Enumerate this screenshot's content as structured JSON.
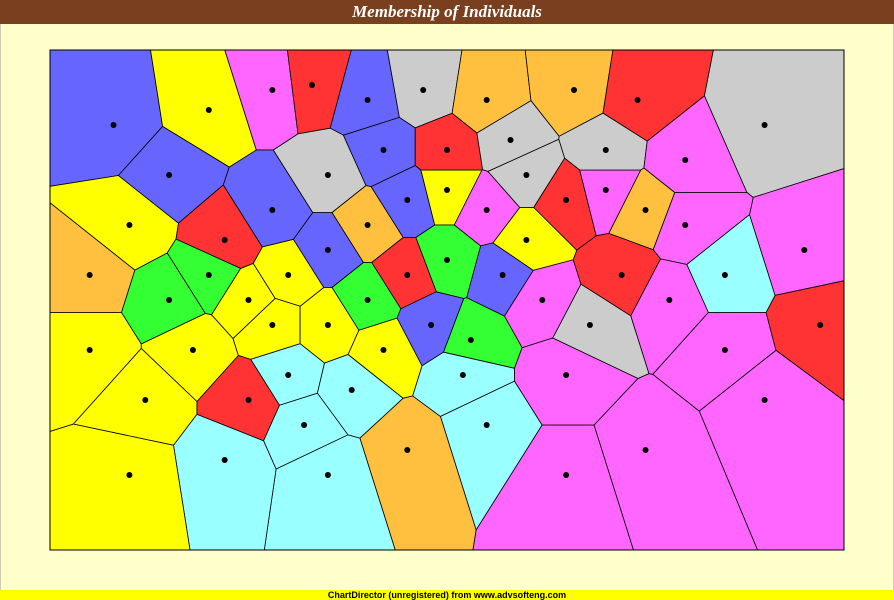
{
  "chart_data": {
    "type": "voronoi",
    "title": "Membership of Individuals",
    "footer": "ChartDirector (unregistered) from www.advsofteng.com",
    "xlim": [
      0,
      100
    ],
    "ylim": [
      0,
      100
    ],
    "x": [
      8,
      20,
      28,
      33,
      40,
      47,
      55,
      66,
      74,
      90,
      95,
      97,
      90,
      75,
      65,
      55,
      45,
      35,
      22,
      10,
      5,
      5,
      10,
      15,
      20,
      25,
      30,
      28,
      35,
      40,
      45,
      50,
      55,
      60,
      65,
      70,
      75,
      80,
      85,
      78,
      72,
      68,
      62,
      57,
      50,
      45,
      40,
      35,
      30,
      38,
      42,
      48,
      53,
      25,
      32,
      18,
      15,
      22,
      28,
      35,
      42,
      50,
      58,
      70,
      80,
      60,
      52,
      85,
      65,
      12
    ],
    "y": [
      85,
      88,
      92,
      93,
      90,
      92,
      90,
      92,
      90,
      85,
      60,
      45,
      30,
      20,
      15,
      25,
      20,
      15,
      18,
      15,
      40,
      55,
      65,
      75,
      55,
      50,
      55,
      45,
      60,
      65,
      70,
      72,
      68,
      75,
      70,
      72,
      68,
      65,
      55,
      50,
      55,
      45,
      50,
      55,
      58,
      55,
      50,
      45,
      35,
      32,
      40,
      45,
      42,
      30,
      25,
      40,
      50,
      62,
      68,
      75,
      80,
      80,
      82,
      80,
      78,
      62,
      35,
      40,
      35,
      30
    ],
    "colors": [
      "#6666ff",
      "#ffff00",
      "#ff66ff",
      "#ff3333",
      "#6666ff",
      "#cccccc",
      "#ffc040",
      "#ffc040",
      "#ff3333",
      "#cccccc",
      "#ff66ff",
      "#ff3333",
      "#ff66ff",
      "#ff66ff",
      "#ff66ff",
      "#99ffff",
      "#ffc040",
      "#99ffff",
      "#99ffff",
      "#ffff00",
      "#ffff00",
      "#ffc040",
      "#ffff00",
      "#6666ff",
      "#33ff33",
      "#ffff00",
      "#ffff00",
      "#ffff00",
      "#6666ff",
      "#ffc040",
      "#6666ff",
      "#ffff00",
      "#ff66ff",
      "#cccccc",
      "#ff3333",
      "#ff66ff",
      "#ffc040",
      "#ff66ff",
      "#99ffff",
      "#ff66ff",
      "#ff3333",
      "#cccccc",
      "#ff66ff",
      "#6666ff",
      "#33ff33",
      "#ff3333",
      "#33ff33",
      "#ffff00",
      "#99ffff",
      "#99ffff",
      "#ffff00",
      "#6666ff",
      "#33ff33",
      "#ff3333",
      "#99ffff",
      "#ffff00",
      "#33ff33",
      "#ff3333",
      "#6666ff",
      "#cccccc",
      "#6666ff",
      "#ff3333",
      "#cccccc",
      "#cccccc",
      "#ff66ff",
      "#ffff00",
      "#99ffff",
      "#ff66ff",
      "#ff66ff",
      "#ffff00"
    ]
  }
}
